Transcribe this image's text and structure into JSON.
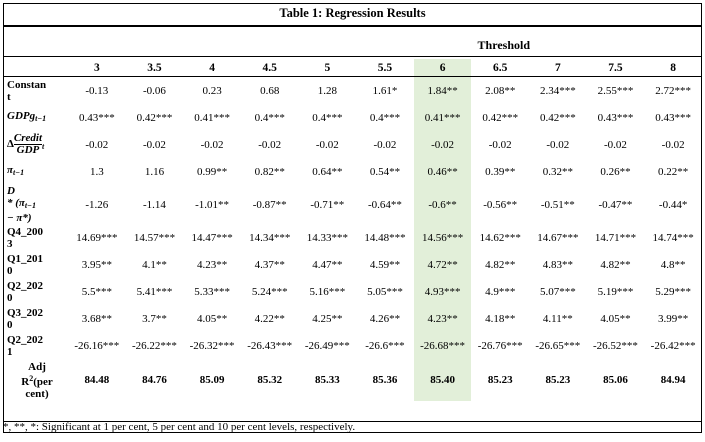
{
  "title": "Table 1: Regression Results",
  "threshold_label": "Threshold",
  "columns": [
    "3",
    "3.5",
    "4",
    "4.5",
    "5",
    "5.5",
    "6",
    "6.5",
    "7",
    "7.5",
    "8"
  ],
  "rows": [
    {
      "label": "Constant",
      "values": [
        "-0.13",
        "-0.06",
        "0.23",
        "0.68",
        "1.28",
        "1.61*",
        "1.84**",
        "2.08**",
        "2.34***",
        "2.55***",
        "2.72***"
      ]
    },
    {
      "label": "GDPg t−1",
      "values": [
        "0.43***",
        "0.42***",
        "0.41***",
        "0.4***",
        "0.4***",
        "0.4***",
        "0.41***",
        "0.42***",
        "0.42***",
        "0.43***",
        "0.43***"
      ]
    },
    {
      "label": "Δ Credit/GDP t",
      "values": [
        "-0.02",
        "-0.02",
        "-0.02",
        "-0.02",
        "-0.02",
        "-0.02",
        "-0.02",
        "-0.02",
        "-0.02",
        "-0.02",
        "-0.02"
      ]
    },
    {
      "label": "π t−1",
      "values": [
        "1.3",
        "1.16",
        "0.99**",
        "0.82**",
        "0.64**",
        "0.54**",
        "0.46**",
        "0.39**",
        "0.32**",
        "0.26**",
        "0.22**"
      ]
    },
    {
      "label": "D * (π t−1 − π*)",
      "values": [
        "-1.26",
        "-1.14",
        "-1.01**",
        "-0.87**",
        "-0.71**",
        "-0.64**",
        "-0.6**",
        "-0.56**",
        "-0.51**",
        "-0.47**",
        "-0.44*"
      ]
    },
    {
      "label": "Q4_2003",
      "values": [
        "14.69***",
        "14.57***",
        "14.47***",
        "14.34***",
        "14.33***",
        "14.48***",
        "14.56***",
        "14.62***",
        "14.67***",
        "14.71***",
        "14.74***"
      ]
    },
    {
      "label": "Q1_2010",
      "values": [
        "3.95**",
        "4.1**",
        "4.23**",
        "4.37**",
        "4.47**",
        "4.59**",
        "4.72**",
        "4.82**",
        "4.83**",
        "4.82**",
        "4.8**"
      ]
    },
    {
      "label": "Q2_2020",
      "values": [
        "5.5***",
        "5.41***",
        "5.33***",
        "5.24***",
        "5.16***",
        "5.05***",
        "4.93***",
        "4.9***",
        "5.07***",
        "5.19***",
        "5.29***"
      ]
    },
    {
      "label": "Q3_2020",
      "values": [
        "3.68**",
        "3.7**",
        "4.05**",
        "4.22**",
        "4.25**",
        "4.26**",
        "4.23**",
        "4.18**",
        "4.11**",
        "4.05**",
        "3.99**"
      ]
    },
    {
      "label": "Q2_2021",
      "values": [
        "-26.16***",
        "-26.22***",
        "-26.32***",
        "-26.43***",
        "-26.49***",
        "-26.6***",
        "-26.68***",
        "-26.76***",
        "-26.65***",
        "-26.52***",
        "-26.42***"
      ]
    },
    {
      "label": "Adj R²(per cent)",
      "values": [
        "84.48",
        "84.76",
        "85.09",
        "85.32",
        "85.33",
        "85.36",
        "85.40",
        "85.23",
        "85.23",
        "85.06",
        "84.94"
      ]
    }
  ],
  "labels_display": {
    "constant_a": "Constan",
    "constant_b": "t",
    "gdpg": "GDPg",
    "gdpg_sub": "t−1",
    "delta": "Δ",
    "credit": "Credit",
    "gdp": "GDP",
    "t_sub": "t",
    "pi": "π",
    "pi_sub": "t−1",
    "d": "D",
    "d_expr1": "* (π",
    "d_expr1_sub": "t−1",
    "d_expr2": "− π*)",
    "q4_a": "Q4_200",
    "q4_b": "3",
    "q1_a": "Q1_201",
    "q1_b": "0",
    "q2_a": "Q2_202",
    "q2_b": "0",
    "q3_a": "Q3_202",
    "q3_b": "0",
    "q21_a": "Q2_202",
    "q21_b": "1",
    "adj_a": "Adj",
    "adj_b": "R",
    "adj_sup": "2",
    "adj_c": "(per",
    "adj_d": "cent)"
  },
  "highlight_column": "6",
  "highlight_color": "#e2efd9",
  "note": "*, **, *: Significant at 1 per cent, 5 per cent and 10 per cent levels, respectively."
}
